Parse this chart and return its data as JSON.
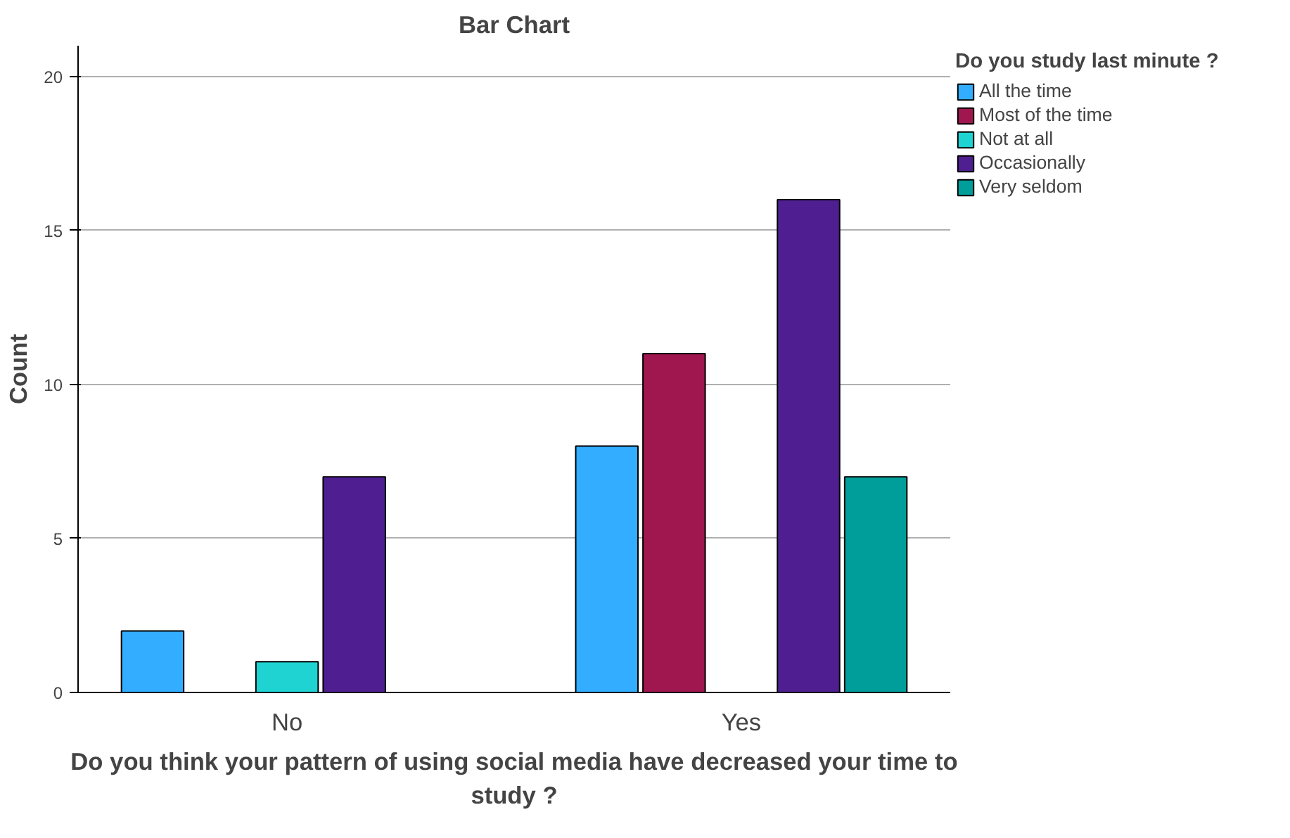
{
  "chart_data": {
    "type": "bar",
    "title": "Bar Chart",
    "xlabel": "Do you think your pattern of using social media have decreased your time to study ?",
    "ylabel": "Count",
    "legend_title": "Do you study last minute ?",
    "categories": [
      "No",
      "Yes"
    ],
    "series": [
      {
        "name": "All the time",
        "color": "#33adff",
        "values": [
          2,
          8
        ]
      },
      {
        "name": "Most of the time",
        "color": "#a0174f",
        "values": [
          null,
          11
        ]
      },
      {
        "name": "Not at all",
        "color": "#1fd3d3",
        "values": [
          1,
          null
        ]
      },
      {
        "name": "Occasionally",
        "color": "#4f1f91",
        "values": [
          7,
          16
        ]
      },
      {
        "name": "Very seldom",
        "color": "#009e9a",
        "values": [
          null,
          7
        ]
      }
    ],
    "ylim": [
      0,
      21
    ],
    "yticks": [
      0,
      5,
      10,
      15,
      20
    ],
    "grid": "y",
    "legend": "top right"
  }
}
